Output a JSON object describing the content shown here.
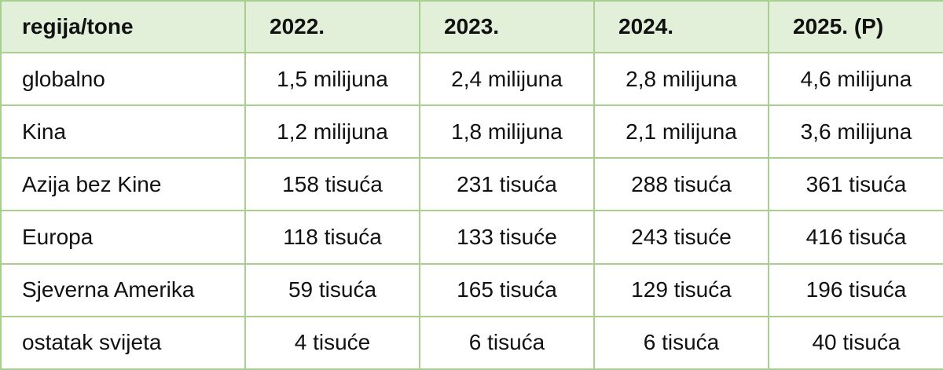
{
  "table": {
    "headers": [
      "regija/tone",
      "2022.",
      "2023.",
      "2024.",
      "2025. (P)"
    ],
    "rows": [
      {
        "region": "globalno",
        "values": [
          "1,5 milijuna",
          "2,4 milijuna",
          "2,8 milijuna",
          "4,6 milijuna"
        ]
      },
      {
        "region": "Kina",
        "values": [
          "1,2 milijuna",
          "1,8 milijuna",
          "2,1 milijuna",
          "3,6 milijuna"
        ]
      },
      {
        "region": "Azija bez Kine",
        "values": [
          "158 tisuća",
          "231 tisuća",
          "288 tisuća",
          "361 tisuća"
        ]
      },
      {
        "region": "Europa",
        "values": [
          "118 tisuća",
          "133 tisuće",
          "243 tisuće",
          "416 tisuća"
        ]
      },
      {
        "region": "Sjeverna Amerika",
        "values": [
          "59 tisuća",
          "165 tisuća",
          "129 tisuća",
          "196 tisuća"
        ]
      },
      {
        "region": "ostatak svijeta",
        "values": [
          "4 tisuće",
          "6 tisuća",
          "6 tisuća",
          "40 tisuća"
        ]
      }
    ]
  },
  "colors": {
    "header_background": "#e2efd9",
    "border": "#a9cf8f",
    "text": "#111111"
  }
}
